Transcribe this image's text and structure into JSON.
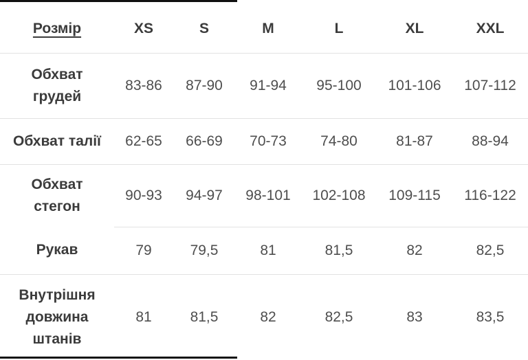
{
  "table": {
    "header": {
      "label": "Розмір",
      "sizes": [
        "XS",
        "S",
        "M",
        "L",
        "XL",
        "XXL"
      ]
    },
    "rows": [
      {
        "label": "Обхват\nгрудей",
        "values": [
          "83-86",
          "87-90",
          "91-94",
          "95-100",
          "101-106",
          "107-112"
        ]
      },
      {
        "label": "Обхват талії",
        "values": [
          "62-65",
          "66-69",
          "70-73",
          "74-80",
          "81-87",
          "88-94"
        ]
      },
      {
        "label": "Обхват\nстегон",
        "values": [
          "90-93",
          "94-97",
          "98-101",
          "102-108",
          "109-115",
          "116-122"
        ]
      },
      {
        "label": "Рукав",
        "values": [
          "79",
          "79,5",
          "81",
          "81,5",
          "82",
          "82,5"
        ]
      },
      {
        "label": "Внутрішня\nдовжина\nштанів",
        "values": [
          "81",
          "81,5",
          "82",
          "82,5",
          "83",
          "83,5"
        ]
      }
    ]
  },
  "colors": {
    "text_dark": "#3b3b3b",
    "text_value": "#4e4e4e",
    "divider": "#e2e2e2",
    "edge_bar": "#111111",
    "background": "#ffffff"
  }
}
